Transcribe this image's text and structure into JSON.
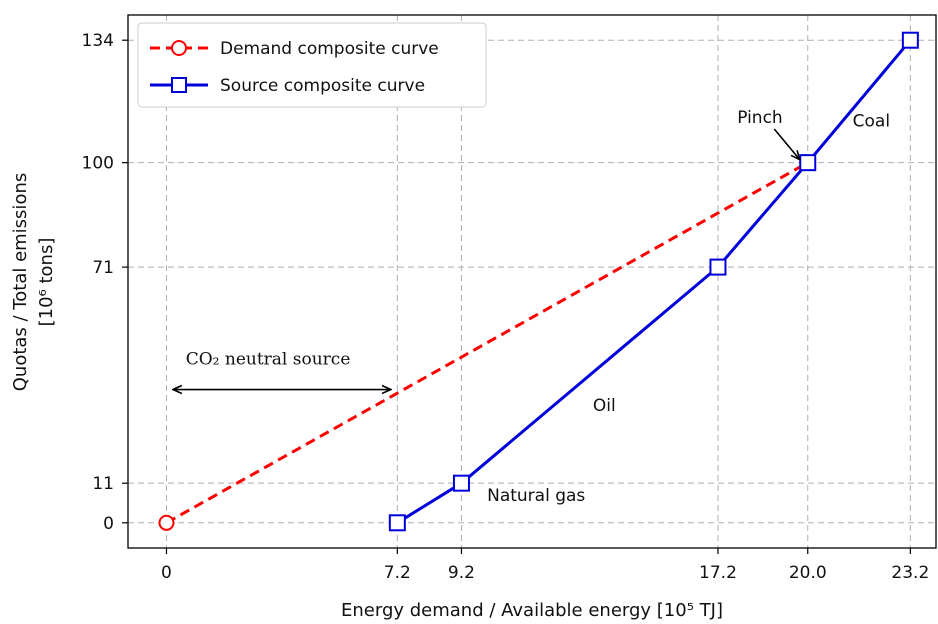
{
  "chart_data": {
    "type": "line",
    "title": "",
    "xlabel": "Energy demand / Available energy [10⁵ TJ]",
    "ylabel": "Quotas / Total emissions",
    "ylabel_unit": "[10⁶ tons]",
    "x_ticks": [
      0,
      7.2,
      9.2,
      17.2,
      20.0,
      23.2
    ],
    "x_tick_labels": [
      "0",
      "7.2",
      "9.2",
      "17.2",
      "20.0",
      "23.2"
    ],
    "y_ticks": [
      0,
      11,
      71,
      100,
      134
    ],
    "y_tick_labels": [
      "0",
      "11",
      "71",
      "100",
      "134"
    ],
    "xlim": [
      -1.2,
      24.0
    ],
    "ylim": [
      -7,
      141
    ],
    "grid": true,
    "legend_position": "top-left",
    "series": [
      {
        "name": "Demand composite curve",
        "color": "#ff0000",
        "line_style": "dashed",
        "marker": "circle",
        "points": [
          [
            0,
            0
          ],
          [
            20.0,
            100
          ]
        ]
      },
      {
        "name": "Source composite curve",
        "color": "#0000dd",
        "line_style": "solid",
        "marker": "square",
        "points": [
          [
            7.2,
            0
          ],
          [
            9.2,
            11
          ],
          [
            17.2,
            71
          ],
          [
            20.0,
            100
          ],
          [
            23.2,
            134
          ]
        ]
      }
    ],
    "annotations": [
      {
        "text": "Pinch",
        "x": 17.8,
        "y": 111,
        "arrow_to": [
          20.0,
          100
        ]
      },
      {
        "text": "Coal",
        "x": 21.4,
        "y": 110
      },
      {
        "text": "Oil",
        "x": 13.3,
        "y": 31
      },
      {
        "text": "Natural gas",
        "x": 10.0,
        "y": 6
      },
      {
        "text": "CO₂ neutral source",
        "x": 0.6,
        "y": 44,
        "double_arrow": [
          [
            0.2,
            37
          ],
          [
            7.0,
            37
          ]
        ]
      }
    ]
  }
}
